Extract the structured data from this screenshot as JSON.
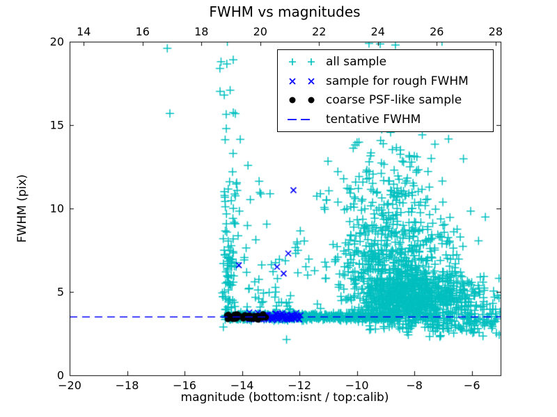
{
  "figure": {
    "background": "#ffffff"
  },
  "chart_data": {
    "type": "scatter",
    "title": "FWHM vs magnitudes",
    "xlabel": "magnitude (bottom:isnt / top:calib)",
    "ylabel": "FWHM (pix)",
    "x_axis_bottom": {
      "range": [
        -20,
        -5
      ],
      "ticks": [
        {
          "v": -20,
          "label": "−20"
        },
        {
          "v": -18,
          "label": "−18"
        },
        {
          "v": -16,
          "label": "−16"
        },
        {
          "v": -14,
          "label": "−14"
        },
        {
          "v": -12,
          "label": "−12"
        },
        {
          "v": -10,
          "label": "−10"
        },
        {
          "v": -8,
          "label": "−8"
        },
        {
          "v": -6,
          "label": "−6"
        }
      ]
    },
    "x_axis_top": {
      "range": [
        13.52,
        28.17
      ],
      "ticks": [
        {
          "v": 14,
          "label": "14"
        },
        {
          "v": 16,
          "label": "16"
        },
        {
          "v": 18,
          "label": "18"
        },
        {
          "v": 20,
          "label": "20"
        },
        {
          "v": 22,
          "label": "22"
        },
        {
          "v": 24,
          "label": "24"
        },
        {
          "v": 26,
          "label": "26"
        },
        {
          "v": 28,
          "label": "28"
        }
      ]
    },
    "y_axis": {
      "range": [
        0,
        20
      ],
      "ticks": [
        {
          "v": 0,
          "label": "0"
        },
        {
          "v": 5,
          "label": "5"
        },
        {
          "v": 10,
          "label": "10"
        },
        {
          "v": 15,
          "label": "15"
        },
        {
          "v": 20,
          "label": "20"
        }
      ]
    },
    "tentative_fwhm": 3.5,
    "series": [
      {
        "label": "all sample",
        "marker": "plus",
        "color": "#00bfbf"
      },
      {
        "label": "sample for rough FWHM",
        "marker": "cross",
        "color": "#0000ff"
      },
      {
        "label": "coarse PSF-like sample",
        "marker": "dot",
        "color": "#000000"
      },
      {
        "label": "tentative FWHM",
        "marker": "dashed-line",
        "color": "#0000ff"
      }
    ],
    "clusters": [
      {
        "series": 0,
        "n": 60,
        "x": {
          "dist": "normal",
          "mean": -14.45,
          "sd": 0.13,
          "min": -14.72,
          "max": -14.05
        },
        "y": {
          "dist": "uniform",
          "min": 3.75,
          "max": 7.8
        }
      },
      {
        "series": 0,
        "n": 25,
        "x": {
          "dist": "normal",
          "mean": -14.4,
          "sd": 0.18,
          "min": -14.75,
          "max": -13.9
        },
        "y": {
          "dist": "uniform",
          "min": 7.8,
          "max": 11.5
        }
      },
      {
        "series": 0,
        "n": 14,
        "x": {
          "dist": "uniform",
          "min": -14.8,
          "max": -14.1
        },
        "y": {
          "dist": "uniform",
          "min": 11.5,
          "max": 19.3
        }
      },
      {
        "series": 0,
        "n": 40,
        "x": {
          "dist": "uniform",
          "min": -14.05,
          "max": -12.3
        },
        "y": {
          "dist": "halfnormal",
          "offset": 3.9,
          "sd": 2.0,
          "max": 10.4
        }
      },
      {
        "series": 0,
        "n": 7,
        "x": {
          "dist": "uniform",
          "min": -14.35,
          "max": -12.4
        },
        "y": {
          "dist": "uniform",
          "min": 10.5,
          "max": 14.2
        }
      },
      {
        "series": 0,
        "n": 16,
        "x": {
          "dist": "uniform",
          "min": -12.25,
          "max": -11.25
        },
        "y": {
          "dist": "uniform",
          "min": 3.9,
          "max": 11.3
        }
      },
      {
        "series": 0,
        "n": 420,
        "x": {
          "dist": "uniform",
          "min": -14.62,
          "max": -11.35
        },
        "y": {
          "dist": "normal",
          "mean": 3.52,
          "sd": 0.1,
          "min": 3.25,
          "max": 3.85
        }
      },
      {
        "series": 0,
        "n": 280,
        "x": {
          "dist": "uniform",
          "min": -11.35,
          "max": -8.55
        },
        "y": {
          "dist": "normal",
          "mean": 3.5,
          "sd": 0.09,
          "min": 3.2,
          "max": 3.8
        }
      },
      {
        "series": 0,
        "n": 760,
        "x": {
          "dist": "normal",
          "mean": -8.1,
          "sd": 1.05,
          "min": -10.9,
          "max": -5.02
        },
        "y": {
          "dist": "normal",
          "mean": 4.4,
          "sd": 0.85,
          "min": 3.2,
          "max": 7.0
        }
      },
      {
        "series": 0,
        "n": 480,
        "x": {
          "dist": "normal",
          "mean": -8.55,
          "sd": 1.05,
          "min": -11.15,
          "max": -5.02
        },
        "y": {
          "dist": "normal",
          "mean": 6.6,
          "sd": 1.5,
          "min": 4.5,
          "max": 11.0
        }
      },
      {
        "series": 0,
        "n": 170,
        "x": {
          "dist": "normal",
          "mean": -8.85,
          "sd": 1.0,
          "min": -11.15,
          "max": -5.3
        },
        "y": {
          "dist": "normal",
          "mean": 10.8,
          "sd": 1.9,
          "min": 8.0,
          "max": 15.6
        }
      },
      {
        "series": 0,
        "n": 20,
        "x": {
          "dist": "uniform",
          "min": -10.6,
          "max": -6.4
        },
        "y": {
          "dist": "uniform",
          "min": 15.6,
          "max": 19.9
        }
      },
      {
        "series": 0,
        "n": 95,
        "x": {
          "dist": "normal",
          "mean": -7.1,
          "sd": 1.25,
          "min": -9.9,
          "max": -5.02
        },
        "y": {
          "dist": "normal",
          "mean": 3.0,
          "sd": 0.32,
          "min": 2.25,
          "max": 3.35
        }
      },
      {
        "series": 0,
        "n": 60,
        "x": {
          "dist": "uniform",
          "min": -6.25,
          "max": -5.02
        },
        "y": {
          "dist": "normal",
          "mean": 3.8,
          "sd": 0.9,
          "min": 2.3,
          "max": 6.2
        }
      },
      {
        "series": 1,
        "n": 85,
        "x": {
          "dist": "uniform",
          "min": -13.85,
          "max": -11.95
        },
        "y": {
          "dist": "normal",
          "mean": 3.52,
          "sd": 0.1,
          "min": 3.25,
          "max": 3.8
        }
      },
      {
        "series": 2,
        "n": 55,
        "x": {
          "dist": "uniform",
          "min": -14.55,
          "max": -13.08
        },
        "y": {
          "dist": "normal",
          "mean": 3.5,
          "sd": 0.07,
          "min": 3.33,
          "max": 3.68
        }
      }
    ],
    "outlier_points": {
      "all_sample": [
        [
          -16.6,
          19.6
        ],
        [
          -16.51,
          15.7
        ],
        [
          -14.77,
          18.4
        ],
        [
          -14.73,
          18.8
        ],
        [
          -14.51,
          20.0
        ],
        [
          -9.58,
          19.9
        ],
        [
          -8.66,
          19.8
        ],
        [
          -7.04,
          20.0
        ],
        [
          -14.65,
          2.9
        ],
        [
          -12.45,
          2.15
        ]
      ],
      "rough_fwhm": [
        [
          -14.11,
          6.6
        ],
        [
          -12.78,
          6.5
        ],
        [
          -12.55,
          6.1
        ],
        [
          -12.39,
          7.3
        ],
        [
          -12.21,
          11.1
        ]
      ]
    },
    "legend_position": "upper-right-inside"
  },
  "legend": {
    "entries": [
      {
        "label": "all sample"
      },
      {
        "label": "sample for rough FWHM"
      },
      {
        "label": "coarse PSF-like sample"
      },
      {
        "label": "tentative FWHM"
      }
    ]
  }
}
